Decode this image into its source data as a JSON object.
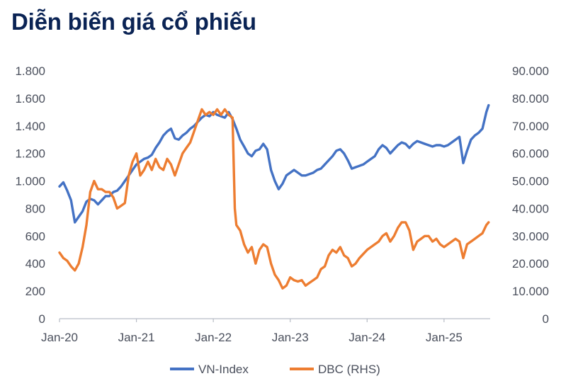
{
  "page": {
    "title": "Diễn biến giá cổ phiếu"
  },
  "chart_data": {
    "type": "line",
    "title": "Diễn biến giá cổ phiếu",
    "x_tick_labels": [
      "Jan-20",
      "Jan-21",
      "Jan-22",
      "Jan-23",
      "Jan-24",
      "Jan-25"
    ],
    "x_range": [
      2020.0,
      2025.6
    ],
    "y_left": {
      "range": [
        0,
        1800
      ],
      "ticks": [
        0,
        200,
        400,
        600,
        800,
        1000,
        1200,
        1400,
        1600,
        1800
      ],
      "tick_labels": [
        "0",
        "200",
        "400",
        "600",
        "800",
        "1.000",
        "1.200",
        "1.400",
        "1.600",
        "1.800"
      ]
    },
    "y_right": {
      "range": [
        0,
        90000
      ],
      "ticks": [
        0,
        10000,
        20000,
        30000,
        40000,
        50000,
        60000,
        70000,
        80000,
        90000
      ],
      "tick_labels": [
        "0",
        "10.000",
        "20.000",
        "30.000",
        "40.000",
        "50.000",
        "60.000",
        "70.000",
        "80.000",
        "90.000"
      ]
    },
    "grid": false,
    "legend_position": "bottom",
    "series": [
      {
        "name": "VN-Index",
        "axis": "left",
        "color": "#4472c4",
        "points": [
          [
            2020.0,
            960
          ],
          [
            2020.05,
            990
          ],
          [
            2020.1,
            930
          ],
          [
            2020.15,
            860
          ],
          [
            2020.2,
            700
          ],
          [
            2020.25,
            740
          ],
          [
            2020.3,
            780
          ],
          [
            2020.35,
            850
          ],
          [
            2020.4,
            870
          ],
          [
            2020.45,
            860
          ],
          [
            2020.5,
            830
          ],
          [
            2020.55,
            860
          ],
          [
            2020.6,
            890
          ],
          [
            2020.65,
            890
          ],
          [
            2020.7,
            920
          ],
          [
            2020.75,
            930
          ],
          [
            2020.8,
            960
          ],
          [
            2020.85,
            1000
          ],
          [
            2020.9,
            1040
          ],
          [
            2020.95,
            1080
          ],
          [
            2021.0,
            1120
          ],
          [
            2021.05,
            1140
          ],
          [
            2021.1,
            1160
          ],
          [
            2021.15,
            1170
          ],
          [
            2021.2,
            1190
          ],
          [
            2021.25,
            1240
          ],
          [
            2021.3,
            1280
          ],
          [
            2021.35,
            1330
          ],
          [
            2021.4,
            1360
          ],
          [
            2021.45,
            1380
          ],
          [
            2021.5,
            1310
          ],
          [
            2021.55,
            1300
          ],
          [
            2021.6,
            1330
          ],
          [
            2021.65,
            1350
          ],
          [
            2021.7,
            1380
          ],
          [
            2021.75,
            1400
          ],
          [
            2021.8,
            1430
          ],
          [
            2021.85,
            1460
          ],
          [
            2021.9,
            1480
          ],
          [
            2021.95,
            1470
          ],
          [
            2022.0,
            1500
          ],
          [
            2022.05,
            1480
          ],
          [
            2022.1,
            1470
          ],
          [
            2022.15,
            1460
          ],
          [
            2022.2,
            1500
          ],
          [
            2022.25,
            1450
          ],
          [
            2022.3,
            1380
          ],
          [
            2022.35,
            1300
          ],
          [
            2022.4,
            1250
          ],
          [
            2022.45,
            1200
          ],
          [
            2022.5,
            1180
          ],
          [
            2022.55,
            1220
          ],
          [
            2022.6,
            1230
          ],
          [
            2022.65,
            1270
          ],
          [
            2022.7,
            1230
          ],
          [
            2022.75,
            1080
          ],
          [
            2022.8,
            1000
          ],
          [
            2022.85,
            940
          ],
          [
            2022.9,
            980
          ],
          [
            2022.95,
            1040
          ],
          [
            2023.0,
            1060
          ],
          [
            2023.05,
            1080
          ],
          [
            2023.1,
            1060
          ],
          [
            2023.15,
            1040
          ],
          [
            2023.2,
            1040
          ],
          [
            2023.25,
            1050
          ],
          [
            2023.3,
            1060
          ],
          [
            2023.35,
            1080
          ],
          [
            2023.4,
            1090
          ],
          [
            2023.45,
            1120
          ],
          [
            2023.5,
            1150
          ],
          [
            2023.55,
            1180
          ],
          [
            2023.6,
            1220
          ],
          [
            2023.65,
            1230
          ],
          [
            2023.7,
            1200
          ],
          [
            2023.75,
            1150
          ],
          [
            2023.8,
            1090
          ],
          [
            2023.85,
            1100
          ],
          [
            2023.9,
            1110
          ],
          [
            2023.95,
            1120
          ],
          [
            2024.0,
            1140
          ],
          [
            2024.05,
            1160
          ],
          [
            2024.1,
            1180
          ],
          [
            2024.15,
            1230
          ],
          [
            2024.2,
            1260
          ],
          [
            2024.25,
            1240
          ],
          [
            2024.3,
            1200
          ],
          [
            2024.35,
            1230
          ],
          [
            2024.4,
            1260
          ],
          [
            2024.45,
            1280
          ],
          [
            2024.5,
            1270
          ],
          [
            2024.55,
            1240
          ],
          [
            2024.6,
            1270
          ],
          [
            2024.65,
            1290
          ],
          [
            2024.7,
            1280
          ],
          [
            2024.75,
            1270
          ],
          [
            2024.8,
            1260
          ],
          [
            2024.85,
            1250
          ],
          [
            2024.9,
            1260
          ],
          [
            2024.95,
            1260
          ],
          [
            2025.0,
            1250
          ],
          [
            2025.05,
            1260
          ],
          [
            2025.1,
            1280
          ],
          [
            2025.15,
            1300
          ],
          [
            2025.2,
            1320
          ],
          [
            2025.25,
            1130
          ],
          [
            2025.3,
            1220
          ],
          [
            2025.35,
            1300
          ],
          [
            2025.4,
            1330
          ],
          [
            2025.45,
            1350
          ],
          [
            2025.5,
            1380
          ],
          [
            2025.55,
            1500
          ],
          [
            2025.58,
            1550
          ]
        ]
      },
      {
        "name": "DBC (RHS)",
        "axis": "right",
        "color": "#ed7d31",
        "points": [
          [
            2020.0,
            24000
          ],
          [
            2020.05,
            22000
          ],
          [
            2020.1,
            21000
          ],
          [
            2020.15,
            19000
          ],
          [
            2020.2,
            17500
          ],
          [
            2020.25,
            20000
          ],
          [
            2020.3,
            26000
          ],
          [
            2020.35,
            34000
          ],
          [
            2020.4,
            46000
          ],
          [
            2020.45,
            50000
          ],
          [
            2020.5,
            47000
          ],
          [
            2020.55,
            47000
          ],
          [
            2020.6,
            46000
          ],
          [
            2020.65,
            46000
          ],
          [
            2020.7,
            44000
          ],
          [
            2020.75,
            40000
          ],
          [
            2020.8,
            41000
          ],
          [
            2020.85,
            42000
          ],
          [
            2020.9,
            52000
          ],
          [
            2020.95,
            57000
          ],
          [
            2021.0,
            60000
          ],
          [
            2021.05,
            52000
          ],
          [
            2021.1,
            54000
          ],
          [
            2021.15,
            57000
          ],
          [
            2021.2,
            54000
          ],
          [
            2021.25,
            58000
          ],
          [
            2021.3,
            55000
          ],
          [
            2021.35,
            54000
          ],
          [
            2021.4,
            58000
          ],
          [
            2021.45,
            56000
          ],
          [
            2021.5,
            52000
          ],
          [
            2021.55,
            56000
          ],
          [
            2021.6,
            60000
          ],
          [
            2021.65,
            62000
          ],
          [
            2021.7,
            64000
          ],
          [
            2021.75,
            68000
          ],
          [
            2021.8,
            72000
          ],
          [
            2021.85,
            76000
          ],
          [
            2021.9,
            74000
          ],
          [
            2021.95,
            75000
          ],
          [
            2022.0,
            74000
          ],
          [
            2022.05,
            76000
          ],
          [
            2022.1,
            74000
          ],
          [
            2022.15,
            76000
          ],
          [
            2022.2,
            74000
          ],
          [
            2022.25,
            73000
          ],
          [
            2022.28,
            40000
          ],
          [
            2022.3,
            34000
          ],
          [
            2022.35,
            32000
          ],
          [
            2022.4,
            27000
          ],
          [
            2022.45,
            24000
          ],
          [
            2022.5,
            26000
          ],
          [
            2022.55,
            20000
          ],
          [
            2022.6,
            25000
          ],
          [
            2022.65,
            27000
          ],
          [
            2022.7,
            26000
          ],
          [
            2022.75,
            20000
          ],
          [
            2022.8,
            16000
          ],
          [
            2022.85,
            14000
          ],
          [
            2022.9,
            11000
          ],
          [
            2022.95,
            12000
          ],
          [
            2023.0,
            15000
          ],
          [
            2023.05,
            14000
          ],
          [
            2023.1,
            13500
          ],
          [
            2023.15,
            14000
          ],
          [
            2023.2,
            12000
          ],
          [
            2023.25,
            13000
          ],
          [
            2023.3,
            14000
          ],
          [
            2023.35,
            15000
          ],
          [
            2023.4,
            18000
          ],
          [
            2023.45,
            19000
          ],
          [
            2023.5,
            23000
          ],
          [
            2023.55,
            25000
          ],
          [
            2023.6,
            24000
          ],
          [
            2023.65,
            26000
          ],
          [
            2023.7,
            23000
          ],
          [
            2023.75,
            22000
          ],
          [
            2023.8,
            19000
          ],
          [
            2023.85,
            20000
          ],
          [
            2023.9,
            22000
          ],
          [
            2024.0,
            25000
          ],
          [
            2024.05,
            26000
          ],
          [
            2024.1,
            27000
          ],
          [
            2024.15,
            28000
          ],
          [
            2024.2,
            30000
          ],
          [
            2024.25,
            31000
          ],
          [
            2024.3,
            28000
          ],
          [
            2024.35,
            30000
          ],
          [
            2024.4,
            33000
          ],
          [
            2024.45,
            35000
          ],
          [
            2024.5,
            35000
          ],
          [
            2024.55,
            32000
          ],
          [
            2024.6,
            25000
          ],
          [
            2024.65,
            28000
          ],
          [
            2024.7,
            29000
          ],
          [
            2024.75,
            30000
          ],
          [
            2024.8,
            30000
          ],
          [
            2024.85,
            28000
          ],
          [
            2024.9,
            29000
          ],
          [
            2024.95,
            27000
          ],
          [
            2025.0,
            26000
          ],
          [
            2025.05,
            27000
          ],
          [
            2025.1,
            28000
          ],
          [
            2025.15,
            29000
          ],
          [
            2025.2,
            28000
          ],
          [
            2025.25,
            22000
          ],
          [
            2025.3,
            27000
          ],
          [
            2025.35,
            28000
          ],
          [
            2025.4,
            29000
          ],
          [
            2025.45,
            30000
          ],
          [
            2025.5,
            31000
          ],
          [
            2025.55,
            34000
          ],
          [
            2025.58,
            35000
          ]
        ]
      }
    ]
  }
}
